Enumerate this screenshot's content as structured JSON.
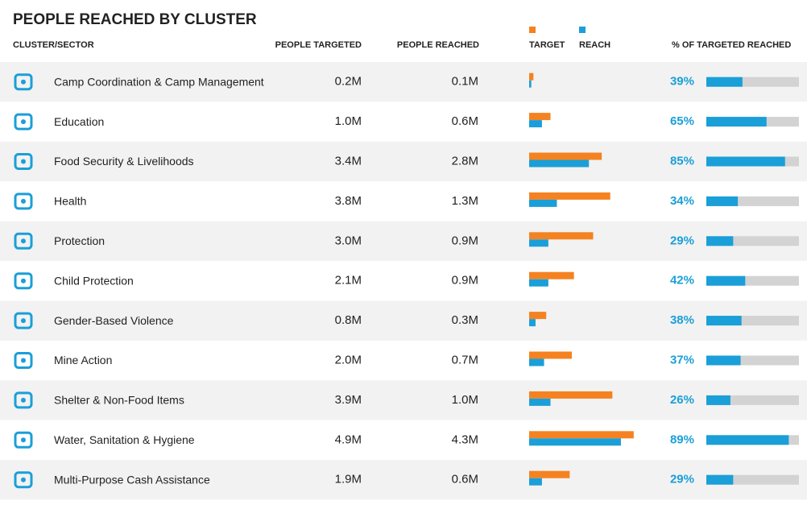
{
  "table": {
    "title": "PEOPLE REACHED BY CLUSTER",
    "headers": [
      "CLUSTER/SECTOR",
      "PEOPLE TARGETED",
      "PEOPLE REACHED",
      "TARGET",
      "REACH",
      "% OF TARGETED REACHED"
    ],
    "target_color": "#f58220",
    "reach_color": "#1a9fd8",
    "rows": [
      {
        "cluster": "Camp Coordination & Camp Management",
        "targeted": 0.2,
        "targeted_label": "0.2M",
        "reached": 0.1,
        "reached_label": "0.1M",
        "percent": 39,
        "percent_label": "39%"
      },
      {
        "cluster": "Education",
        "targeted": 1.0,
        "targeted_label": "1.0M",
        "reached": 0.6,
        "reached_label": "0.6M",
        "percent": 65,
        "percent_label": "65%"
      },
      {
        "cluster": "Food Security & Livelihoods",
        "targeted": 3.4,
        "targeted_label": "3.4M",
        "reached": 2.8,
        "reached_label": "2.8M",
        "percent": 85,
        "percent_label": "85%"
      },
      {
        "cluster": "Health",
        "targeted": 3.8,
        "targeted_label": "3.8M",
        "reached": 1.3,
        "reached_label": "1.3M",
        "percent": 34,
        "percent_label": "34%"
      },
      {
        "cluster": "Protection",
        "targeted": 3.0,
        "targeted_label": "3.0M",
        "reached": 0.9,
        "reached_label": "0.9M",
        "percent": 29,
        "percent_label": "29%"
      },
      {
        "cluster": "Child Protection",
        "targeted": 2.1,
        "targeted_label": "2.1M",
        "reached": 0.9,
        "reached_label": "0.9M",
        "percent": 42,
        "percent_label": "42%"
      },
      {
        "cluster": "Gender-Based Violence",
        "targeted": 0.8,
        "targeted_label": "0.8M",
        "reached": 0.3,
        "reached_label": "0.3M",
        "percent": 38,
        "percent_label": "38%"
      },
      {
        "cluster": "Mine Action",
        "targeted": 2.0,
        "targeted_label": "2.0M",
        "reached": 0.7,
        "reached_label": "0.7M",
        "percent": 37,
        "percent_label": "37%"
      },
      {
        "cluster": "Shelter & Non-Food Items",
        "targeted": 3.9,
        "targeted_label": "3.9M",
        "reached": 1.0,
        "reached_label": "1.0M",
        "percent": 26,
        "percent_label": "26%"
      },
      {
        "cluster": "Water, Sanitation & Hygiene",
        "targeted": 4.9,
        "targeted_label": "4.9M",
        "reached": 4.3,
        "reached_label": "4.3M",
        "percent": 89,
        "percent_label": "89%"
      },
      {
        "cluster": "Multi-Purpose Cash Assistance",
        "targeted": 1.9,
        "targeted_label": "1.9M",
        "reached": 0.6,
        "reached_label": "0.6M",
        "percent": 29,
        "percent_label": "29%"
      }
    ]
  }
}
